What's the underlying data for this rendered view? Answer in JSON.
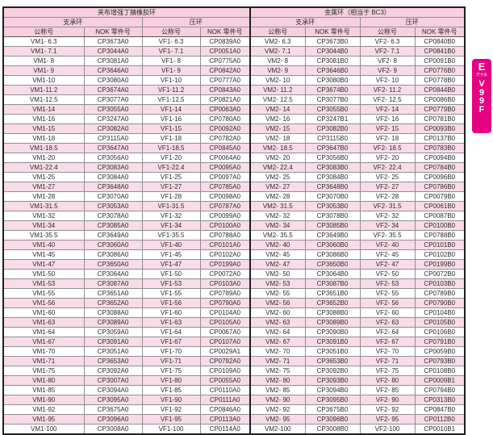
{
  "colors": {
    "header_pink": "#f7cfe0",
    "row_pink": "#fadbe9",
    "tab_magenta": "#e60082",
    "border_dark": "#1f1f1f",
    "border_light": "#8f8f8f"
  },
  "side_tab": {
    "section_letter": "E",
    "section_caption": "尺寸表",
    "code": "V99F",
    "code_letters": [
      "V",
      "9",
      "9",
      "F"
    ]
  },
  "table": {
    "group_headers": [
      "夹布增强丁腈橡胶环",
      "金属环（相当于 BC3）"
    ],
    "sub_headers": [
      "支承环",
      "压环",
      "支承环",
      "压环"
    ],
    "col_headers": [
      "公称号",
      "NOK 零件号",
      "公称号",
      "NOK 零件号",
      "公称号",
      "NOK 零件号",
      "公称号",
      "NOK 零件号"
    ],
    "rows": [
      [
        "VM1- 6.3",
        "CP3673A0",
        "VF1- 6.3",
        "CP0839A0",
        "VM2- 6.3",
        "CP3673B0",
        "VF2- 6.3",
        "CP0840B0"
      ],
      [
        "VM1- 7.1",
        "CP3044A0",
        "VF1- 7.1",
        "CP0051A0",
        "VM2- 7.1",
        "CP3044B0",
        "VF2- 7.1",
        "CP0841B0"
      ],
      [
        "VM1- 8",
        "CP3081A0",
        "VF1- 8",
        "CP0775A0",
        "VM2- 8",
        "CP3081B0",
        "VF2- 8",
        "CP0091B0"
      ],
      [
        "VM1- 9",
        "CP3646A0",
        "VF1- 9",
        "CP0842A0",
        "VM2- 9",
        "CP3646B0",
        "VF2- 9",
        "CP0776B0"
      ],
      [
        "VM1-10",
        "CP3080A0",
        "VF1-10",
        "CP0777A0",
        "VM2- 10",
        "CP3080B0",
        "VF2- 10",
        "CP0778B0"
      ],
      [
        "VM1-11.2",
        "CP3674A0",
        "VF1-11.2",
        "CP0843A0",
        "VM2- 11.2",
        "CP3674B0",
        "VF2- 11.2",
        "CP0844B0"
      ],
      [
        "VM1-12.5",
        "CP3077A0",
        "VF1-12.5",
        "CP0821A0",
        "VM2- 12.5",
        "CP3077B0",
        "VF2- 12.5",
        "CP0086B0"
      ],
      [
        "VM1-14",
        "CP3055A0",
        "VF1-14",
        "CP0063A0",
        "VM2- 14",
        "CP3055B0",
        "VF2- 14",
        "CP0779B0"
      ],
      [
        "VM1-16",
        "CP3247A0",
        "VF1-16",
        "CP0780A0",
        "VM2- 16",
        "CP3247B1",
        "VF2- 16",
        "CP0781B0"
      ],
      [
        "VM1-15",
        "CP3082A0",
        "VF1-15",
        "CP0092A0",
        "VM2- 15",
        "CP3082B0",
        "VF2- 15",
        "CP0093B0"
      ],
      [
        "VM1-18",
        "CP3115A0",
        "VF1-18",
        "CP0782A0",
        "VM2- 18",
        "CP3115B0",
        "VF2- 18",
        "CP0137B0"
      ],
      [
        "VM1-18.5",
        "CP3647A0",
        "VF1-18.5",
        "CP0845A0",
        "VM2- 18.5",
        "CP3647B0",
        "VF2- 18.5",
        "CP0783B0"
      ],
      [
        "VM1-20",
        "CP3056A0",
        "VF1-20",
        "CP0064A0",
        "VM2- 20",
        "CP3056B0",
        "VF2- 20",
        "CP0094B0"
      ],
      [
        "VM1-22.4",
        "CP3083A0",
        "VF1-22.4",
        "CP0095A0",
        "VM2- 22.4",
        "CP3083B0",
        "VF2- 22.4",
        "CP0784B0"
      ],
      [
        "VM1-25",
        "CP3084A0",
        "VF1-25",
        "CP0097A0",
        "VM2- 25",
        "CP3084B0",
        "VF2- 25",
        "CP0096B0"
      ],
      [
        "VM1-27",
        "CP3648A0",
        "VF1-27",
        "CP0785A0",
        "VM2- 27",
        "CP3648B0",
        "VF2- 27",
        "CP0786B0"
      ],
      [
        "VM1-28",
        "CP3070A0",
        "VF1-28",
        "CP0098A0",
        "VM2- 28",
        "CP3070B0",
        "VF2- 28",
        "CP0079B0"
      ],
      [
        "VM1-31.5",
        "CP3053A0",
        "VF1-31.5",
        "CP0787A0",
        "VM2- 31.5",
        "CP3053B0",
        "VF2- 31.5",
        "CP0061B0"
      ],
      [
        "VM1-32",
        "CP3078A0",
        "VF1-32",
        "CP0099A0",
        "VM2- 32",
        "CP3078B0",
        "VF2- 32",
        "CP0087B0"
      ],
      [
        "VM1-34",
        "CP3085A0",
        "VF1-34",
        "CP0100A0",
        "VM2- 34",
        "CP3085B0",
        "VF2- 34",
        "CP0100B0"
      ],
      [
        "VM1-35.5",
        "CP3649A0",
        "VF1-35.5",
        "CP0788A0",
        "VM2- 35.5",
        "CP3649B0",
        "VF2- 35.5",
        "CP0788B0"
      ],
      [
        "VM1-40",
        "CP3060A0",
        "VF1-40",
        "CP0101A0",
        "VM2- 40",
        "CP3060B0",
        "VF2- 40",
        "CP0101B0"
      ],
      [
        "VM1-45",
        "CP3086A0",
        "VF1-45",
        "CP0102A0",
        "VM2- 45",
        "CP3086B0",
        "VF2- 45",
        "CP0102B0"
      ],
      [
        "VM1-47",
        "CP3650A0",
        "VF1-47",
        "CP0199A0",
        "VM2- 47",
        "CP3650B0",
        "VF2- 47",
        "CP0199B0"
      ],
      [
        "VM1-50",
        "CP3064A0",
        "VF1-50",
        "CP0072A0",
        "VM2- 50",
        "CP3064B0",
        "VF2- 50",
        "CP0072B0"
      ],
      [
        "VM1-53",
        "CP3087A0",
        "VF1-53",
        "CP0103A0",
        "VM2- 53",
        "CP3087B0",
        "VF2- 53",
        "CP0103B0"
      ],
      [
        "VM1-55",
        "CP3651A0",
        "VF1-55",
        "CP0789A0",
        "VM2- 55",
        "CP3651B0",
        "VF2- 55",
        "CP0789B0"
      ],
      [
        "VM1-56",
        "CP3652A0",
        "VF1-56",
        "CP0790A0",
        "VM2- 56",
        "CP3652B0",
        "VF2- 56",
        "CP0790B0"
      ],
      [
        "VM1-60",
        "CP3088A0",
        "VF1-60",
        "CP0104A0",
        "VM2- 60",
        "CP3088B0",
        "VF2- 60",
        "CP0104B0"
      ],
      [
        "VM1-63",
        "CP3089A0",
        "VF1-63",
        "CP0105A0",
        "VM2- 63",
        "CP3089B0",
        "VF2- 63",
        "CP0105B0"
      ],
      [
        "VM1-64",
        "CP3059A0",
        "VF1-64",
        "CP0067A0",
        "VM2- 64",
        "CP3090B0",
        "VF2- 64",
        "CP0106B0"
      ],
      [
        "VM1-67",
        "CP3091A0",
        "VF1-67",
        "CP0107A0",
        "VM2- 67",
        "CP3091B0",
        "VF2- 67",
        "CP0791B0"
      ],
      [
        "VM1-70",
        "CP3051A0",
        "VF1-70",
        "CP0029A1",
        "VM2- 70",
        "CP3051B0",
        "VF2- 70",
        "CP0059B0"
      ],
      [
        "VM1-71",
        "CP3653A0",
        "VF1-71",
        "CP0792A0",
        "VM2- 71",
        "CP3653B0",
        "VF2- 71",
        "CP0793B0"
      ],
      [
        "VM1-75",
        "CP3092A0",
        "VF1-75",
        "CP0109A0",
        "VM2- 75",
        "CP3092B0",
        "VF2- 75",
        "CP0108B0"
      ],
      [
        "VM1-80",
        "CP3007A0",
        "VF1-80",
        "CP0055A0",
        "VM2- 80",
        "CP3093B0",
        "VF2- 80",
        "CP0009B1"
      ],
      [
        "VM1-85",
        "CP3094A0",
        "VF1-85",
        "CP0110A0",
        "VM2- 85",
        "CP3094B0",
        "VF2- 85",
        "CP0794B0"
      ],
      [
        "VM1-90",
        "CP3095A0",
        "VF1-90",
        "CP0111A0",
        "VM2- 90",
        "CP3095B0",
        "VF2- 90",
        "CP0313B0"
      ],
      [
        "VM1-92",
        "CP3675A0",
        "VF1-92",
        "CP0846A0",
        "VM2- 92",
        "CP3675B0",
        "VF2- 92",
        "CP0847B0"
      ],
      [
        "VM1-95",
        "CP3096A0",
        "VF1-95",
        "CP0113A0",
        "VM2- 95",
        "CP3096B0",
        "VF2- 95",
        "CP0112B0"
      ],
      [
        "VM1-100",
        "CP3008A0",
        "VF1-100",
        "CP0114A0",
        "VM2-100",
        "CP3008B0",
        "VF2-100",
        "CP0010B1"
      ]
    ]
  }
}
